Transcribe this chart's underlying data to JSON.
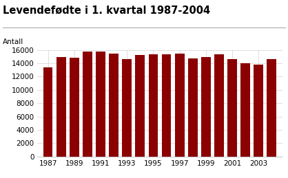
{
  "title": "Levendefødte i 1. kvartal 1987-2004",
  "ylabel": "Antall",
  "years": [
    1987,
    1988,
    1989,
    1990,
    1991,
    1992,
    1993,
    1994,
    1995,
    1996,
    1997,
    1998,
    1999,
    2000,
    2001,
    2002,
    2003,
    2004
  ],
  "values": [
    13350,
    14950,
    14800,
    15750,
    15750,
    15450,
    14650,
    15250,
    15300,
    15350,
    15450,
    14700,
    14900,
    15300,
    14600,
    14000,
    13800,
    14650
  ],
  "bar_color": "#8B0000",
  "ylim": [
    0,
    16000
  ],
  "yticks": [
    0,
    2000,
    4000,
    6000,
    8000,
    10000,
    12000,
    14000,
    16000
  ],
  "xticks": [
    1987,
    1989,
    1991,
    1993,
    1995,
    1997,
    1999,
    2001,
    2003
  ],
  "background_color": "#ffffff",
  "grid_color": "#d0d0d0",
  "title_fontsize": 10.5,
  "label_fontsize": 7.5,
  "tick_fontsize": 7.5
}
